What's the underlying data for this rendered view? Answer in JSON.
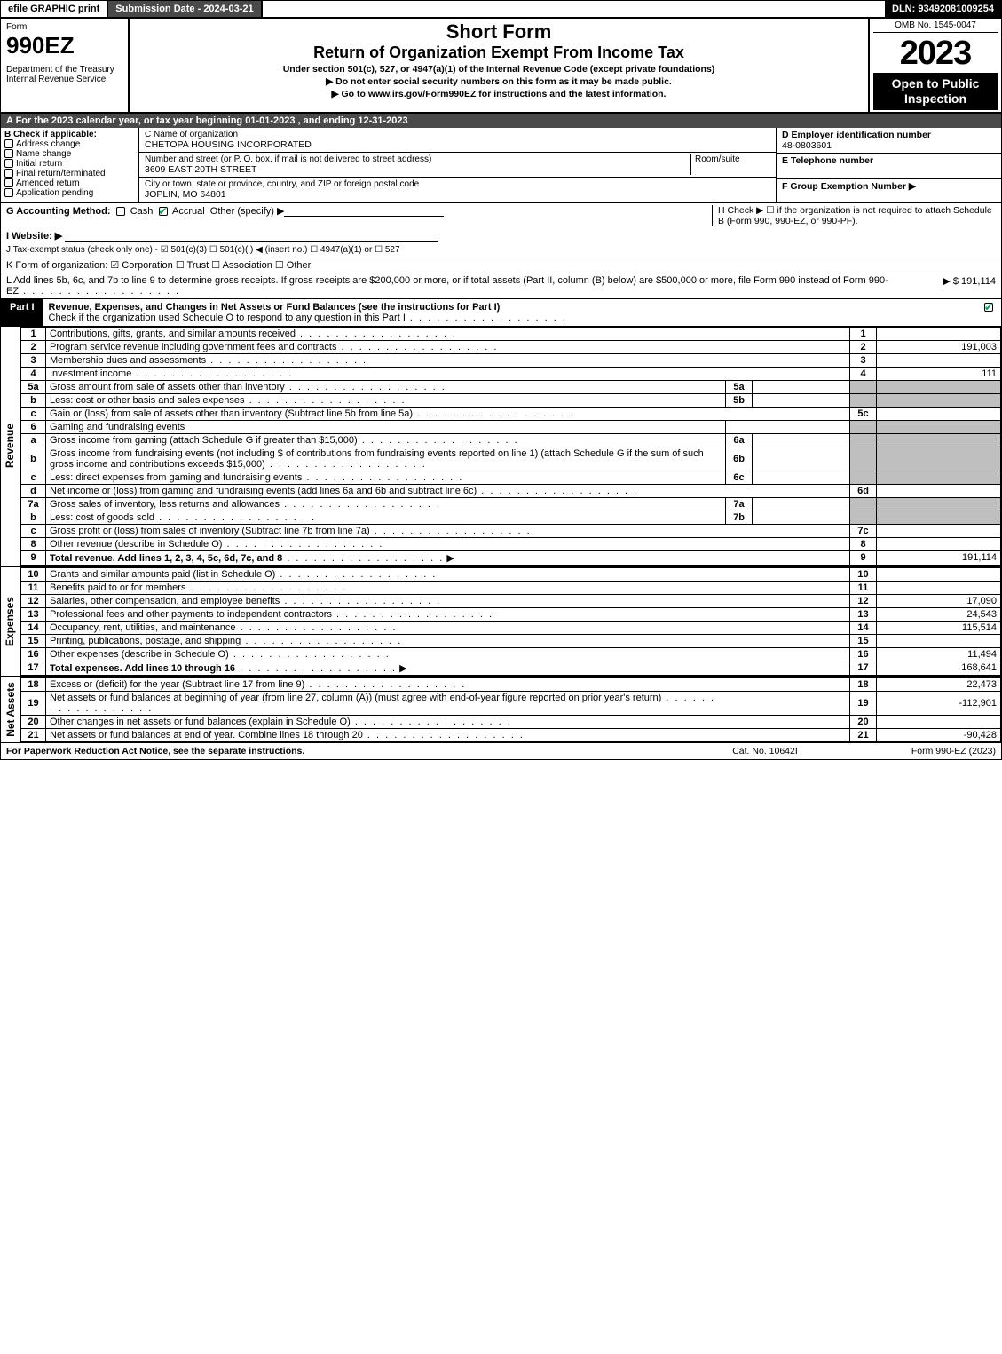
{
  "topbar": {
    "efile": "efile GRAPHIC print",
    "submission": "Submission Date - 2024-03-21",
    "dln": "DLN: 93492081009254"
  },
  "header": {
    "form_word": "Form",
    "form_num": "990EZ",
    "dept1": "Department of the Treasury",
    "dept2": "Internal Revenue Service",
    "short_form": "Short Form",
    "title": "Return of Organization Exempt From Income Tax",
    "sub1": "Under section 501(c), 527, or 4947(a)(1) of the Internal Revenue Code (except private foundations)",
    "sub2": "▶ Do not enter social security numbers on this form as it may be made public.",
    "sub3": "▶ Go to www.irs.gov/Form990EZ for instructions and the latest information.",
    "omb": "OMB No. 1545-0047",
    "year": "2023",
    "open": "Open to Public Inspection"
  },
  "A": "A  For the 2023 calendar year, or tax year beginning 01-01-2023 , and ending 12-31-2023",
  "B": {
    "label": "B  Check if applicable:",
    "items": [
      "Address change",
      "Name change",
      "Initial return",
      "Final return/terminated",
      "Amended return",
      "Application pending"
    ]
  },
  "C": {
    "name_label": "C Name of organization",
    "name": "CHETOPA HOUSING INCORPORATED",
    "addr_label": "Number and street (or P. O. box, if mail is not delivered to street address)",
    "room_label": "Room/suite",
    "addr": "3609 EAST 20TH STREET",
    "city_label": "City or town, state or province, country, and ZIP or foreign postal code",
    "city": "JOPLIN, MO  64801"
  },
  "D": {
    "label": "D Employer identification number",
    "val": "48-0803601"
  },
  "E": {
    "label": "E Telephone number",
    "val": ""
  },
  "F": {
    "label": "F Group Exemption Number   ▶",
    "val": ""
  },
  "G": {
    "label": "G Accounting Method:",
    "cash": "Cash",
    "accrual": "Accrual",
    "other": "Other (specify) ▶"
  },
  "H": "H    Check ▶  ☐  if the organization is not required to attach Schedule B (Form 990, 990-EZ, or 990-PF).",
  "I": "I Website: ▶",
  "J": "J Tax-exempt status (check only one) - ☑ 501(c)(3)  ☐ 501(c)(  ) ◀ (insert no.)  ☐ 4947(a)(1) or  ☐ 527",
  "K": "K Form of organization:  ☑ Corporation   ☐ Trust   ☐ Association   ☐ Other",
  "L": {
    "text": "L Add lines 5b, 6c, and 7b to line 9 to determine gross receipts. If gross receipts are $200,000 or more, or if total assets (Part II, column (B) below) are $500,000 or more, file Form 990 instead of Form 990-EZ",
    "val": "▶ $ 191,114"
  },
  "part1": {
    "tag": "Part I",
    "title": "Revenue, Expenses, and Changes in Net Assets or Fund Balances (see the instructions for Part I)",
    "check_line": "Check if the organization used Schedule O to respond to any question in this Part I"
  },
  "sections": {
    "revenue": "Revenue",
    "expenses": "Expenses",
    "netassets": "Net Assets"
  },
  "rows": [
    {
      "n": "1",
      "d": "Contributions, gifts, grants, and similar amounts received",
      "ln": "1",
      "v": ""
    },
    {
      "n": "2",
      "d": "Program service revenue including government fees and contracts",
      "ln": "2",
      "v": "191,003"
    },
    {
      "n": "3",
      "d": "Membership dues and assessments",
      "ln": "3",
      "v": ""
    },
    {
      "n": "4",
      "d": "Investment income",
      "ln": "4",
      "v": "111"
    },
    {
      "n": "5a",
      "d": "Gross amount from sale of assets other than inventory",
      "mini": "5a",
      "miniv": "",
      "grey": true
    },
    {
      "n": "b",
      "d": "Less: cost or other basis and sales expenses",
      "mini": "5b",
      "miniv": "",
      "grey": true
    },
    {
      "n": "c",
      "d": "Gain or (loss) from sale of assets other than inventory (Subtract line 5b from line 5a)",
      "ln": "5c",
      "v": ""
    },
    {
      "n": "6",
      "d": "Gaming and fundraising events",
      "grey": true,
      "noval": true
    },
    {
      "n": "a",
      "d": "Gross income from gaming (attach Schedule G if greater than $15,000)",
      "mini": "6a",
      "miniv": "",
      "grey": true
    },
    {
      "n": "b",
      "d": "Gross income from fundraising events (not including $                       of contributions from fundraising events reported on line 1) (attach Schedule G if the sum of such gross income and contributions exceeds $15,000)",
      "mini": "6b",
      "miniv": "",
      "grey": true
    },
    {
      "n": "c",
      "d": "Less: direct expenses from gaming and fundraising events",
      "mini": "6c",
      "miniv": "",
      "grey": true
    },
    {
      "n": "d",
      "d": "Net income or (loss) from gaming and fundraising events (add lines 6a and 6b and subtract line 6c)",
      "ln": "6d",
      "v": ""
    },
    {
      "n": "7a",
      "d": "Gross sales of inventory, less returns and allowances",
      "mini": "7a",
      "miniv": "",
      "grey": true
    },
    {
      "n": "b",
      "d": "Less: cost of goods sold",
      "mini": "7b",
      "miniv": "",
      "grey": true
    },
    {
      "n": "c",
      "d": "Gross profit or (loss) from sales of inventory (Subtract line 7b from line 7a)",
      "ln": "7c",
      "v": ""
    },
    {
      "n": "8",
      "d": "Other revenue (describe in Schedule O)",
      "ln": "8",
      "v": ""
    },
    {
      "n": "9",
      "d": "Total revenue. Add lines 1, 2, 3, 4, 5c, 6d, 7c, and 8",
      "ln": "9",
      "v": "191,114",
      "bold": true,
      "arrow": true
    }
  ],
  "exp_rows": [
    {
      "n": "10",
      "d": "Grants and similar amounts paid (list in Schedule O)",
      "ln": "10",
      "v": ""
    },
    {
      "n": "11",
      "d": "Benefits paid to or for members",
      "ln": "11",
      "v": ""
    },
    {
      "n": "12",
      "d": "Salaries, other compensation, and employee benefits",
      "ln": "12",
      "v": "17,090"
    },
    {
      "n": "13",
      "d": "Professional fees and other payments to independent contractors",
      "ln": "13",
      "v": "24,543"
    },
    {
      "n": "14",
      "d": "Occupancy, rent, utilities, and maintenance",
      "ln": "14",
      "v": "115,514"
    },
    {
      "n": "15",
      "d": "Printing, publications, postage, and shipping",
      "ln": "15",
      "v": ""
    },
    {
      "n": "16",
      "d": "Other expenses (describe in Schedule O)",
      "ln": "16",
      "v": "11,494"
    },
    {
      "n": "17",
      "d": "Total expenses. Add lines 10 through 16",
      "ln": "17",
      "v": "168,641",
      "bold": true,
      "arrow": true
    }
  ],
  "na_rows": [
    {
      "n": "18",
      "d": "Excess or (deficit) for the year (Subtract line 17 from line 9)",
      "ln": "18",
      "v": "22,473"
    },
    {
      "n": "19",
      "d": "Net assets or fund balances at beginning of year (from line 27, column (A)) (must agree with end-of-year figure reported on prior year's return)",
      "ln": "19",
      "v": "-112,901"
    },
    {
      "n": "20",
      "d": "Other changes in net assets or fund balances (explain in Schedule O)",
      "ln": "20",
      "v": ""
    },
    {
      "n": "21",
      "d": "Net assets or fund balances at end of year. Combine lines 18 through 20",
      "ln": "21",
      "v": "-90,428"
    }
  ],
  "footer": {
    "l": "For Paperwork Reduction Act Notice, see the separate instructions.",
    "m": "Cat. No. 10642I",
    "r": "Form 990-EZ (2023)"
  },
  "colors": {
    "darkbar": "#4a4a4a",
    "grey": "#bfbfbf"
  }
}
